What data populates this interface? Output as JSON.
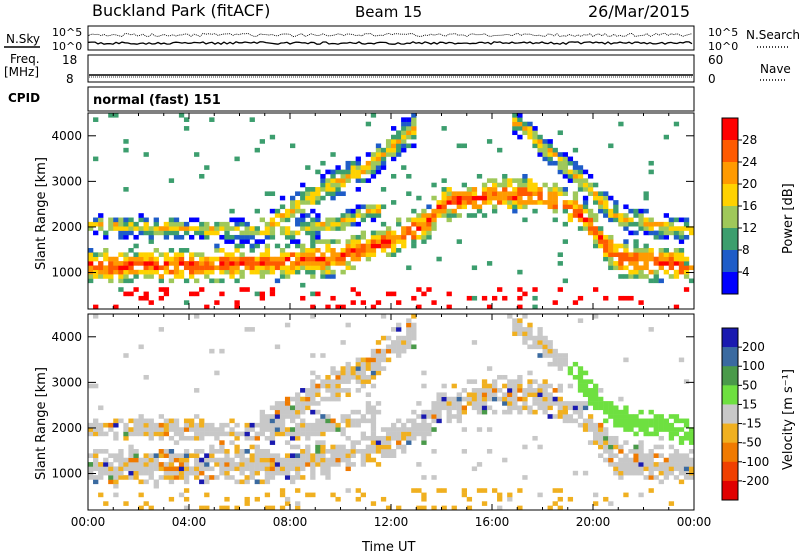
{
  "header": {
    "title": "Buckland Park (fitACF)",
    "beam": "Beam 15",
    "date": "26/Mar/2015"
  },
  "top_panels": {
    "nsky_label": "N.Sky",
    "nsearch_label": "N.Search",
    "freq_label_1": "Freq.",
    "freq_label_2": "[MHz]",
    "nave_label": "Nave",
    "cpid_label": "CPID",
    "cpid_value": "normal (fast) 151",
    "noise_ticks_left": [
      "10^5",
      "10^0"
    ],
    "noise_ticks_right": [
      "10^5",
      "10^0"
    ],
    "freq_ticks": [
      "18",
      "8"
    ],
    "nave_ticks": [
      "60",
      "0"
    ]
  },
  "colorbars": {
    "power": {
      "label": "Power [dB]",
      "ticks": [
        "28",
        "24",
        "20",
        "16",
        "12",
        "8",
        "4"
      ],
      "colors": [
        "#ff0000",
        "#ff5a00",
        "#ff9a00",
        "#ffd200",
        "#9fc85a",
        "#3c9e6e",
        "#1e5cc8",
        "#0000ff"
      ]
    },
    "velocity": {
      "label": "Velocity [m s⁻¹]",
      "ticks": [
        "200",
        "100",
        "50",
        "15",
        "-15",
        "-50",
        "-100",
        "-200"
      ],
      "colors": [
        "#1a1ab0",
        "#3a6aa0",
        "#4a9a4a",
        "#6ee040",
        "#c8c8c8",
        "#f0b020",
        "#f07a00",
        "#f04000",
        "#e00000"
      ]
    }
  },
  "chart_data": [
    {
      "type": "heatmap",
      "name": "power",
      "ylabel": "Slant Range [km]",
      "xlabel": "",
      "x_ticks": [
        "00:00",
        "04:00",
        "08:00",
        "12:00",
        "16:00",
        "20:00",
        "00:00"
      ],
      "y_ticks": [
        1000,
        2000,
        3000,
        4000
      ],
      "ylim": [
        200,
        4500
      ],
      "xlim_hours": [
        0,
        24
      ],
      "bands": [
        {
          "desc": "main_low_band",
          "points": [
            [
              0,
              1150
            ],
            [
              4,
              1150
            ],
            [
              8,
              1250
            ],
            [
              10,
              1350
            ],
            [
              12,
              1700
            ],
            [
              13.5,
              2100
            ],
            [
              14,
              2500
            ],
            [
              16,
              2700
            ],
            [
              18,
              2700
            ],
            [
              19.5,
              2300
            ],
            [
              21,
              1300
            ],
            [
              24,
              1150
            ]
          ],
          "width": 420,
          "value": 24
        },
        {
          "desc": "upper_band_early",
          "points": [
            [
              0,
              2050
            ],
            [
              4,
              1950
            ],
            [
              8,
              1900
            ],
            [
              10,
              2100
            ],
            [
              11.5,
              2400
            ]
          ],
          "width": 260,
          "value": 14
        },
        {
          "desc": "sloped_upper",
          "points": [
            [
              7,
              2000
            ],
            [
              9,
              2700
            ],
            [
              11,
              3300
            ],
            [
              13,
              4200
            ]
          ],
          "width": 400,
          "value": 18
        },
        {
          "desc": "ramp_late",
          "points": [
            [
              17,
              4300
            ],
            [
              19,
              3300
            ],
            [
              21,
              2200
            ],
            [
              24,
              1900
            ]
          ],
          "width": 320,
          "value": 16
        }
      ]
    },
    {
      "type": "heatmap",
      "name": "velocity",
      "ylabel": "Slant Range [km]",
      "xlabel": "Time UT",
      "x_ticks": [
        "00:00",
        "04:00",
        "08:00",
        "12:00",
        "16:00",
        "20:00",
        "00:00"
      ],
      "y_ticks": [
        1000,
        2000,
        3000,
        4000
      ],
      "ylim": [
        200,
        4500
      ],
      "xlim_hours": [
        0,
        24
      ]
    }
  ]
}
